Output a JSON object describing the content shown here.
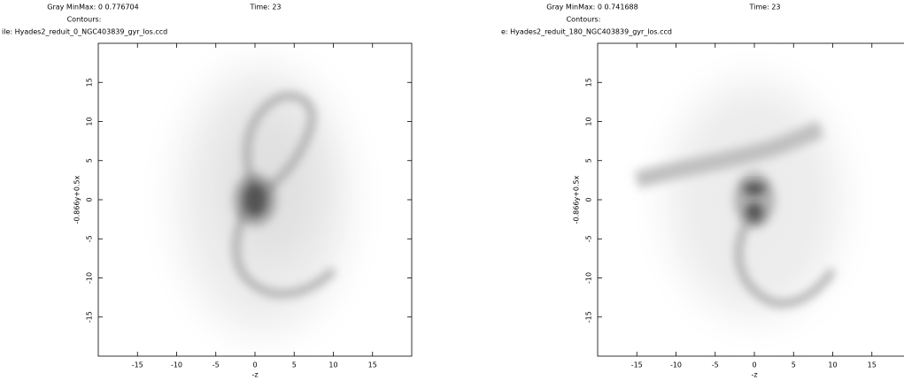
{
  "chart_data": [
    {
      "type": "density",
      "header": {
        "minmax": "Gray MinMax: 0 0.776704",
        "time": "Time: 23",
        "contours": "Contours:",
        "file": "ile: Hyades2_reduit_0_NGC403839_gyr_los.ccd"
      },
      "x_label": "-z",
      "y_label": "-0.866y+0.5x",
      "xlim": [
        -20,
        20
      ],
      "ylim": [
        -20,
        20
      ],
      "xticks": [
        -15,
        -10,
        -5,
        0,
        5,
        10,
        15
      ],
      "yticks": [
        -15,
        -10,
        -5,
        0,
        5,
        10,
        15
      ]
    },
    {
      "type": "density",
      "header": {
        "minmax": "Gray MinMax: 0 0.741688",
        "time": "Time: 23",
        "contours": "Contours:",
        "file": "e: Hyades2_reduit_180_NGC403839_gyr_los.ccd"
      },
      "x_label": "-z",
      "y_label": "-0.866y+0.5x",
      "xlim": [
        -20,
        20
      ],
      "ylim": [
        -20,
        20
      ],
      "xticks": [
        -15,
        -10,
        -5,
        0,
        5,
        10,
        15
      ],
      "yticks": [
        -15,
        -10,
        -5,
        0,
        5,
        10,
        15
      ]
    }
  ]
}
